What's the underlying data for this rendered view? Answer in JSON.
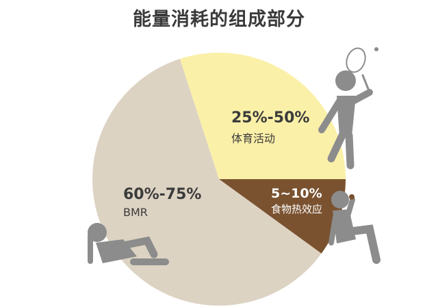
{
  "chart_data": {
    "type": "pie",
    "title": "能量消耗的组成部分",
    "slices": [
      {
        "label": "体育活动",
        "value_label": "25%-50%",
        "value": 30,
        "color": "#fbf0a8"
      },
      {
        "label": "食物热效应",
        "value_label": "5~10%",
        "value": 10,
        "color": "#7a5230"
      },
      {
        "label": "BMR",
        "value_label": "60%-75%",
        "value": 60,
        "color": "#ddd3c3"
      }
    ],
    "start_angle_deg": -18,
    "direction": "clockwise"
  },
  "icons": [
    "badminton-player-icon",
    "eating-person-icon",
    "reclining-person-icon"
  ],
  "icon_color": "#8c8c8c"
}
